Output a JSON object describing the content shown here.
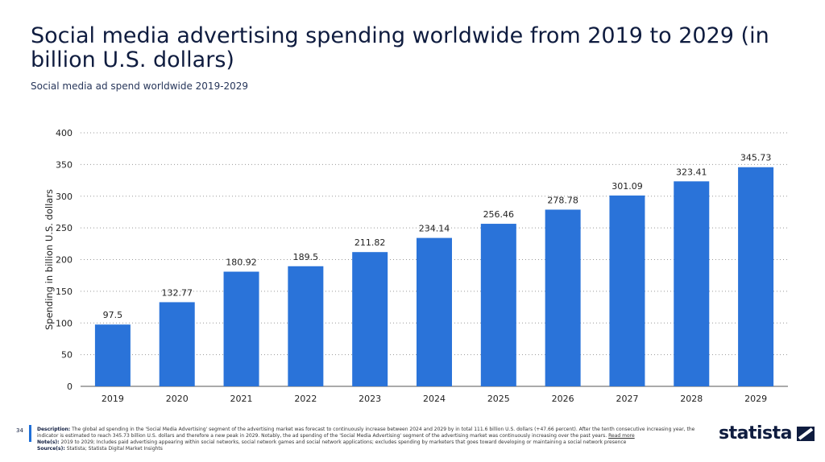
{
  "title": "Social media advertising spending worldwide from 2019 to 2029 (in billion U.S. dollars)",
  "subtitle": "Social media ad spend worldwide 2019-2029",
  "page_number": "34",
  "footer": {
    "description_label": "Description:",
    "description": "The global ad spending in the 'Social Media Advertising' segment of the advertising market was forecast to continuously increase between 2024 and 2029 by in total 111.6 billion U.S. dollars (+47.66 percent). After the tenth consecutive increasing year, the indicator is estimated to reach 345.73 billion U.S. dollars and therefore a new peak in 2029. Notably, the ad spending of the 'Social Media Advertising' segment of the advertising market was continuously increasing over the past years.",
    "read_more": "Read more",
    "notes_label": "Note(s):",
    "notes": "2019 to 2029; Includes paid advertising appearing within social networks, social network games and social network applications; excludes spending by marketers that goes toward developing or maintaining a social network presence",
    "sources_label": "Source(s):",
    "sources": "Statista; Statista Digital Market Insights"
  },
  "logo": "statista",
  "colors": {
    "bar": "#2a73d9",
    "title": "#0f1c3f",
    "accent": "#1f6fd8"
  },
  "chart_data": {
    "type": "bar",
    "categories": [
      "2019",
      "2020",
      "2021",
      "2022",
      "2023",
      "2024",
      "2025",
      "2026",
      "2027",
      "2028",
      "2029"
    ],
    "values": [
      97.5,
      132.77,
      180.92,
      189.5,
      211.82,
      234.14,
      256.46,
      278.78,
      301.09,
      323.41,
      345.73
    ],
    "data_labels": [
      "97.5",
      "132.77",
      "180.92",
      "189.5",
      "211.82",
      "234.14",
      "256.46",
      "278.78",
      "301.09",
      "323.41",
      "345.73"
    ],
    "ylabel": "Spending in billion U.S. dollars",
    "xlabel": "",
    "ylim": [
      0,
      400
    ],
    "yticks": [
      0,
      50,
      100,
      150,
      200,
      250,
      300,
      350,
      400
    ],
    "grid": "horizontal dotted"
  }
}
